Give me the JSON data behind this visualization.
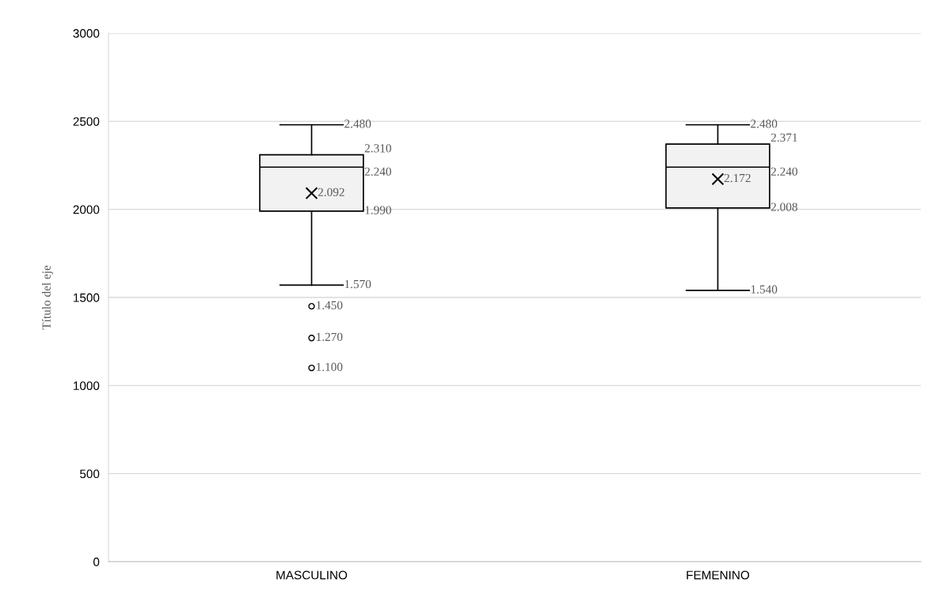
{
  "chart_data": {
    "type": "box",
    "ylabel": "Título del eje",
    "categories": [
      "MASCULINO",
      "FEMENINO"
    ],
    "boxes": [
      {
        "low": 1570,
        "q1": 1990,
        "median": 2240,
        "q3": 2310,
        "high": 2480,
        "mean": 2092,
        "outliers": [
          1450,
          1270,
          1100
        ]
      },
      {
        "low": 1540,
        "q1": 2008,
        "median": 2240,
        "q3": 2371,
        "high": 2480,
        "mean": 2172
      }
    ],
    "color": "#f2f2f2",
    "ylim": [
      0,
      3000
    ],
    "yticks": [
      0,
      500,
      1000,
      1500,
      2000,
      2500,
      3000
    ],
    "grid": "y",
    "marker": "circle",
    "annotations": [
      "2.480",
      "2.310",
      "2.240",
      "2.092",
      "1.990",
      "1.570",
      "1.450",
      "1.270",
      "1.100",
      "2.480",
      "2.371",
      "2.240",
      "2.172",
      "2.008",
      "1.540"
    ]
  }
}
